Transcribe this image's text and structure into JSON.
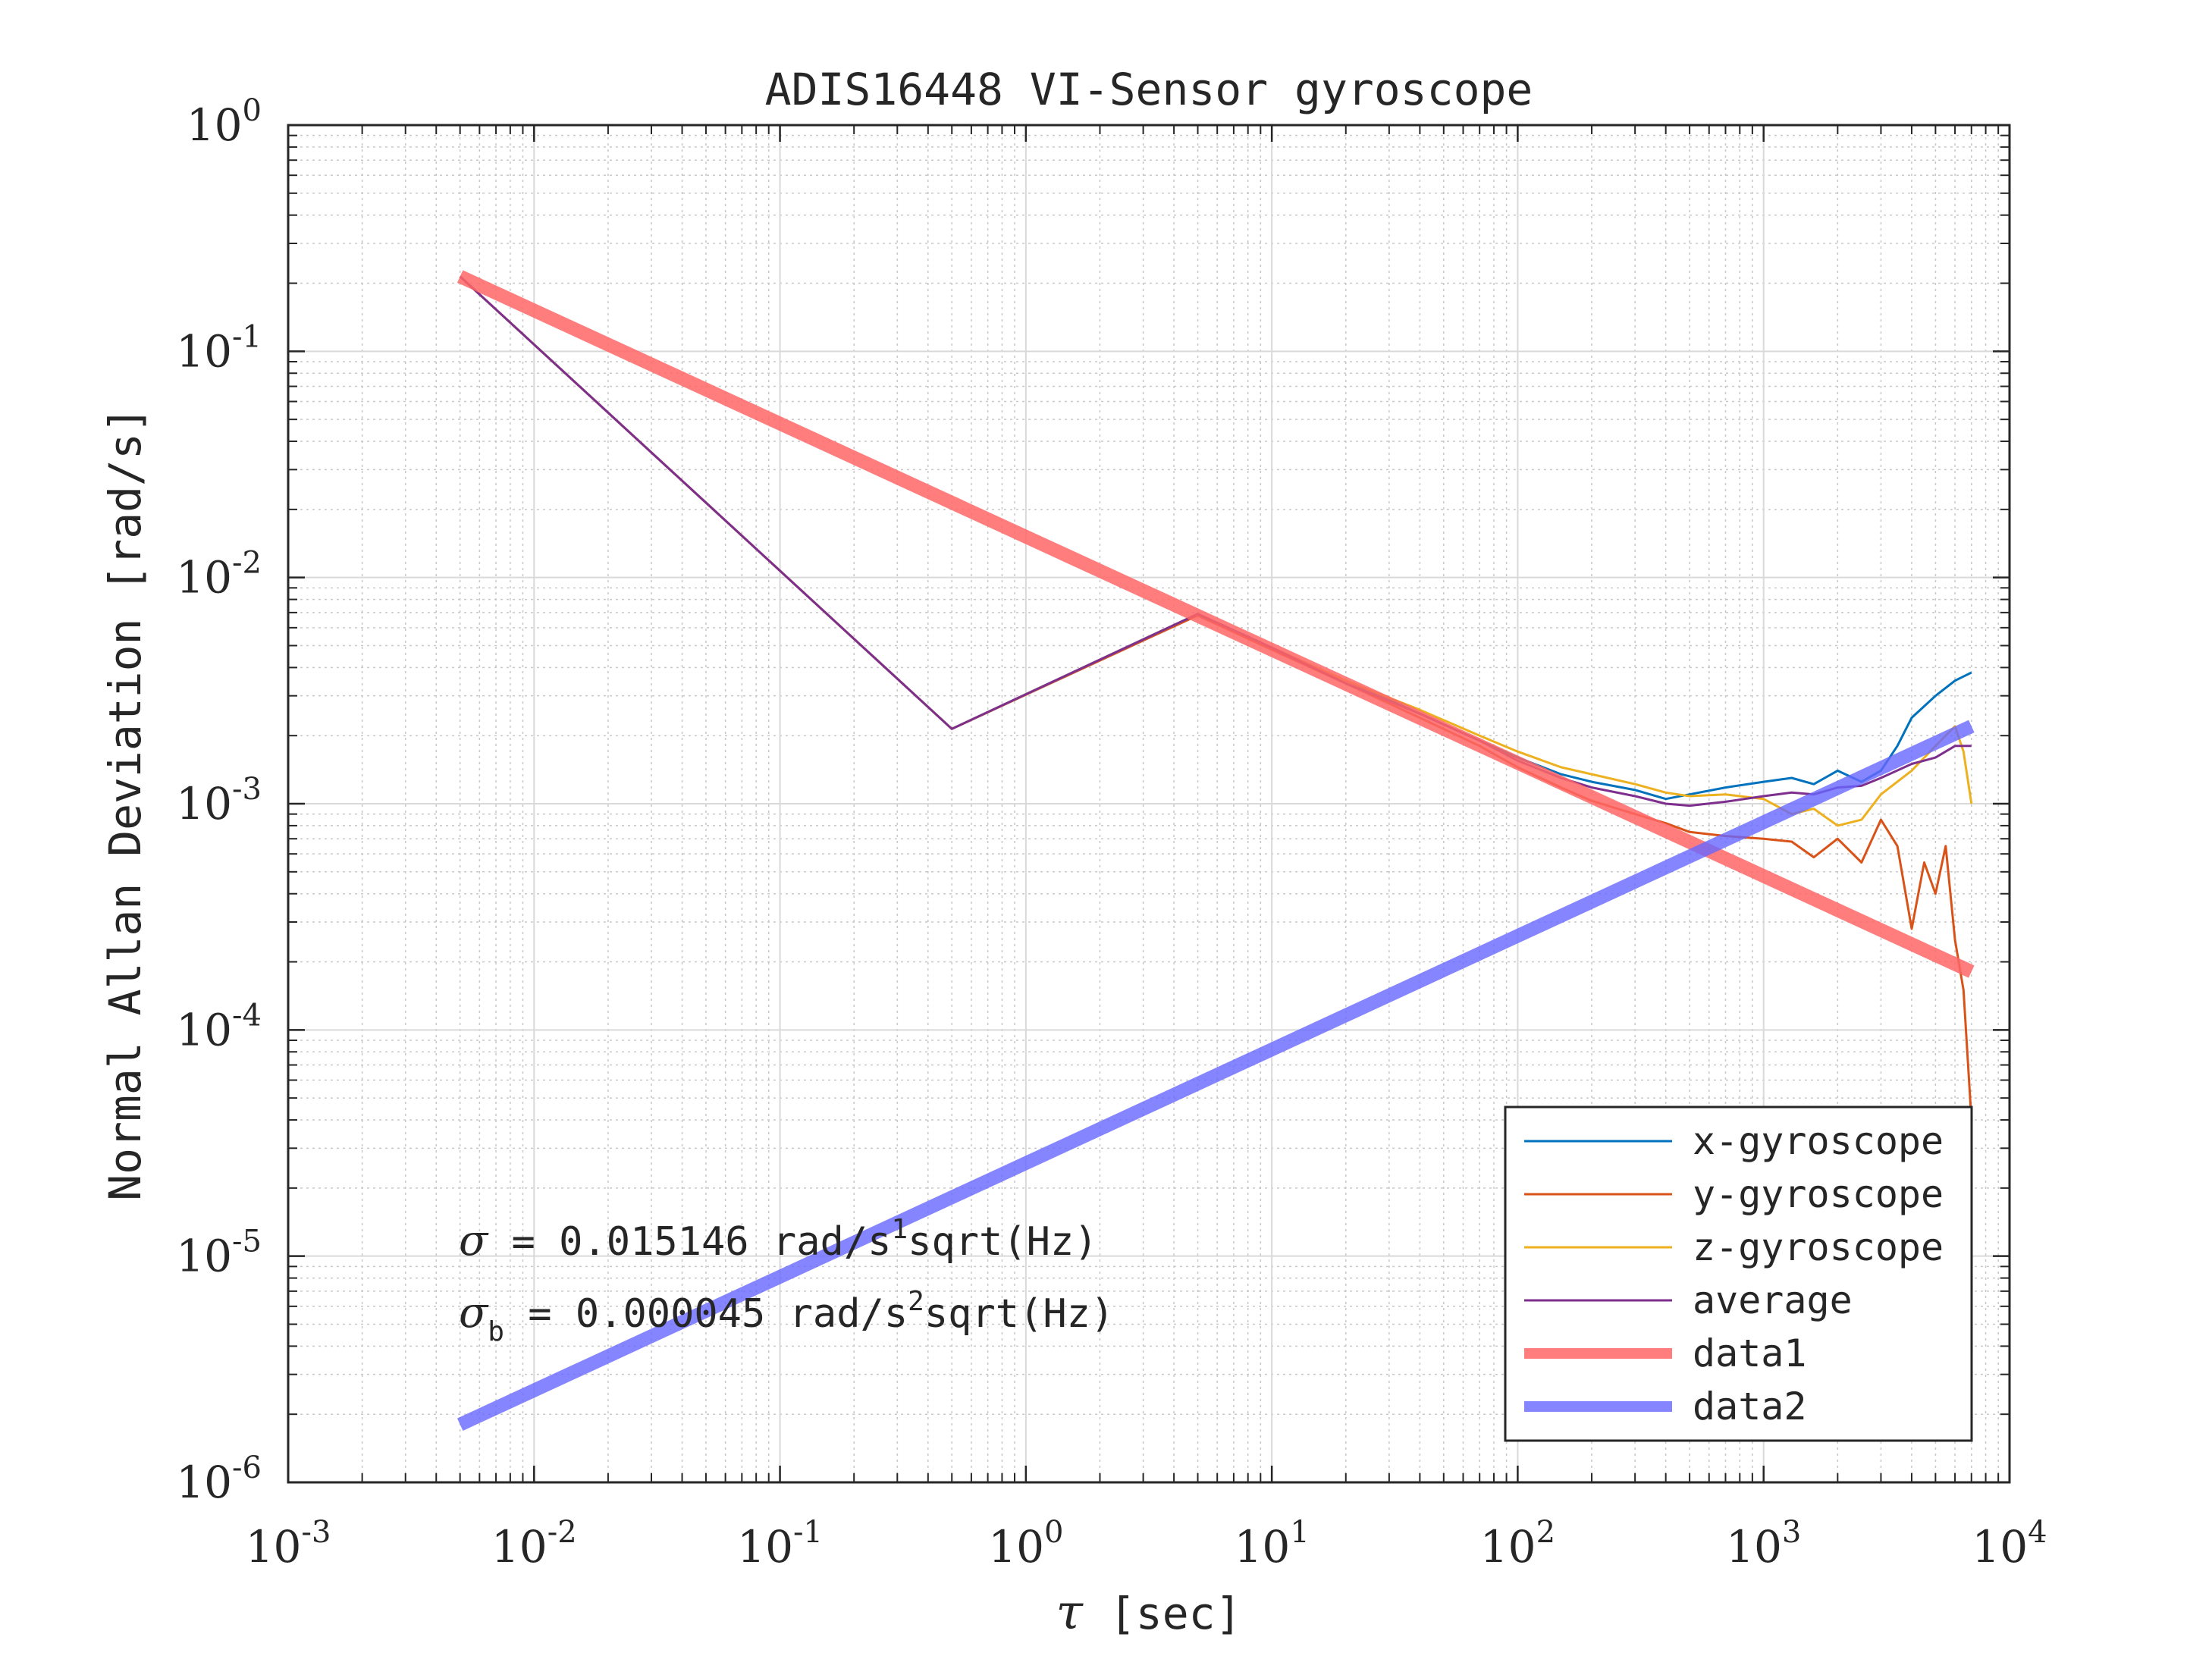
{
  "chart_data": {
    "type": "line",
    "title": "ADIS16448 VI-Sensor gyroscope",
    "xlabel_symbol": "τ",
    "xlabel_unit": "[sec]",
    "ylabel": "Normal Allan Deviation [rad/s]",
    "xscale": "log",
    "yscale": "log",
    "xlim": [
      0.001,
      10000
    ],
    "ylim": [
      1e-06,
      1
    ],
    "grid": true,
    "x_ticks": [
      {
        "base": "10",
        "exp": "-3",
        "value": 0.001
      },
      {
        "base": "10",
        "exp": "-2",
        "value": 0.01
      },
      {
        "base": "10",
        "exp": "-1",
        "value": 0.1
      },
      {
        "base": "10",
        "exp": "0",
        "value": 1
      },
      {
        "base": "10",
        "exp": "1",
        "value": 10
      },
      {
        "base": "10",
        "exp": "2",
        "value": 100
      },
      {
        "base": "10",
        "exp": "3",
        "value": 1000
      },
      {
        "base": "10",
        "exp": "4",
        "value": 10000
      }
    ],
    "y_ticks": [
      {
        "base": "10",
        "exp": "0",
        "value": 1
      },
      {
        "base": "10",
        "exp": "-1",
        "value": 0.1
      },
      {
        "base": "10",
        "exp": "-2",
        "value": 0.01
      },
      {
        "base": "10",
        "exp": "-3",
        "value": 0.001
      },
      {
        "base": "10",
        "exp": "-4",
        "value": 0.0001
      },
      {
        "base": "10",
        "exp": "-5",
        "value": 1e-05
      },
      {
        "base": "10",
        "exp": "-6",
        "value": 1e-06
      }
    ],
    "legend_position": "bottom-right",
    "annotations": [
      {
        "symbol": "σ",
        "sub": "",
        "text": " = 0.015146 rad/s",
        "sup": "1",
        "tail": "sqrt(Hz)"
      },
      {
        "symbol": "σ",
        "sub": "b",
        "text": " = 0.000045 rad/s",
        "sup": "2",
        "tail": "sqrt(Hz)"
      }
    ],
    "series": [
      {
        "name": "x-gyroscope",
        "color": "#0072BD",
        "width": "thin",
        "x": [
          0.005,
          0.05,
          0.5,
          5,
          10,
          20,
          40,
          70,
          100,
          150,
          200,
          300,
          400,
          500,
          700,
          1000,
          1300,
          1600,
          2000,
          2500,
          3000,
          3500,
          4000,
          5000,
          6000,
          7000
        ],
        "y": [
          0.2142,
          0.02142,
          0.002142,
          0.0069,
          0.0049,
          0.0035,
          0.0025,
          0.0019,
          0.0016,
          0.00135,
          0.00125,
          0.00115,
          0.00105,
          0.0011,
          0.00118,
          0.00125,
          0.0013,
          0.00122,
          0.0014,
          0.00125,
          0.0014,
          0.0018,
          0.0024,
          0.003,
          0.0035,
          0.0038
        ]
      },
      {
        "name": "y-gyroscope",
        "color": "#D95319",
        "width": "thin",
        "x": [
          0.005,
          0.05,
          0.5,
          5,
          10,
          20,
          40,
          70,
          100,
          150,
          200,
          300,
          400,
          500,
          700,
          1000,
          1300,
          1600,
          2000,
          2500,
          3000,
          3500,
          4000,
          4500,
          5000,
          5500,
          6000,
          6500,
          7000
        ],
        "y": [
          0.2142,
          0.02142,
          0.002142,
          0.0068,
          0.0048,
          0.0034,
          0.0024,
          0.0018,
          0.00145,
          0.00118,
          0.00103,
          0.0009,
          0.00082,
          0.00075,
          0.00072,
          0.0007,
          0.00068,
          0.00058,
          0.0007,
          0.00055,
          0.00085,
          0.00065,
          0.00028,
          0.00055,
          0.0004,
          0.00065,
          0.00025,
          0.00015,
          4e-05
        ]
      },
      {
        "name": "z-gyroscope",
        "color": "#EDB120",
        "width": "thin",
        "x": [
          0.005,
          0.05,
          0.5,
          5,
          10,
          20,
          40,
          70,
          100,
          150,
          200,
          300,
          400,
          500,
          700,
          1000,
          1300,
          1600,
          2000,
          2500,
          3000,
          4000,
          5000,
          6000,
          6500,
          7000
        ],
        "y": [
          0.2142,
          0.02142,
          0.002142,
          0.0069,
          0.0049,
          0.0035,
          0.0026,
          0.002,
          0.0017,
          0.00145,
          0.00135,
          0.00122,
          0.00112,
          0.00108,
          0.0011,
          0.00105,
          0.0009,
          0.00095,
          0.0008,
          0.00085,
          0.0011,
          0.0014,
          0.0018,
          0.0022,
          0.0017,
          0.001
        ]
      },
      {
        "name": "average",
        "color": "#7E2F8E",
        "width": "thin",
        "x": [
          0.005,
          0.05,
          0.5,
          5,
          10,
          20,
          40,
          70,
          100,
          150,
          200,
          300,
          400,
          500,
          700,
          1000,
          1300,
          1600,
          2000,
          2500,
          3000,
          4000,
          5000,
          6000,
          7000
        ],
        "y": [
          0.2142,
          0.02142,
          0.002142,
          0.0069,
          0.0049,
          0.0034,
          0.0025,
          0.0019,
          0.00155,
          0.0013,
          0.00118,
          0.00108,
          0.001,
          0.00098,
          0.00102,
          0.00108,
          0.00112,
          0.0011,
          0.00118,
          0.0012,
          0.0013,
          0.0015,
          0.0016,
          0.0018,
          0.0018
        ]
      },
      {
        "name": "data1",
        "color": "#FF6666",
        "opacity": 0.85,
        "width": "thick",
        "x": [
          0.005,
          7000
        ],
        "y": [
          0.2142,
          0.000181
        ]
      },
      {
        "name": "data2",
        "color": "#6666FF",
        "opacity": 0.8,
        "width": "thick",
        "x": [
          0.005,
          7000
        ],
        "y": [
          1.8e-06,
          0.0022
        ]
      }
    ]
  }
}
